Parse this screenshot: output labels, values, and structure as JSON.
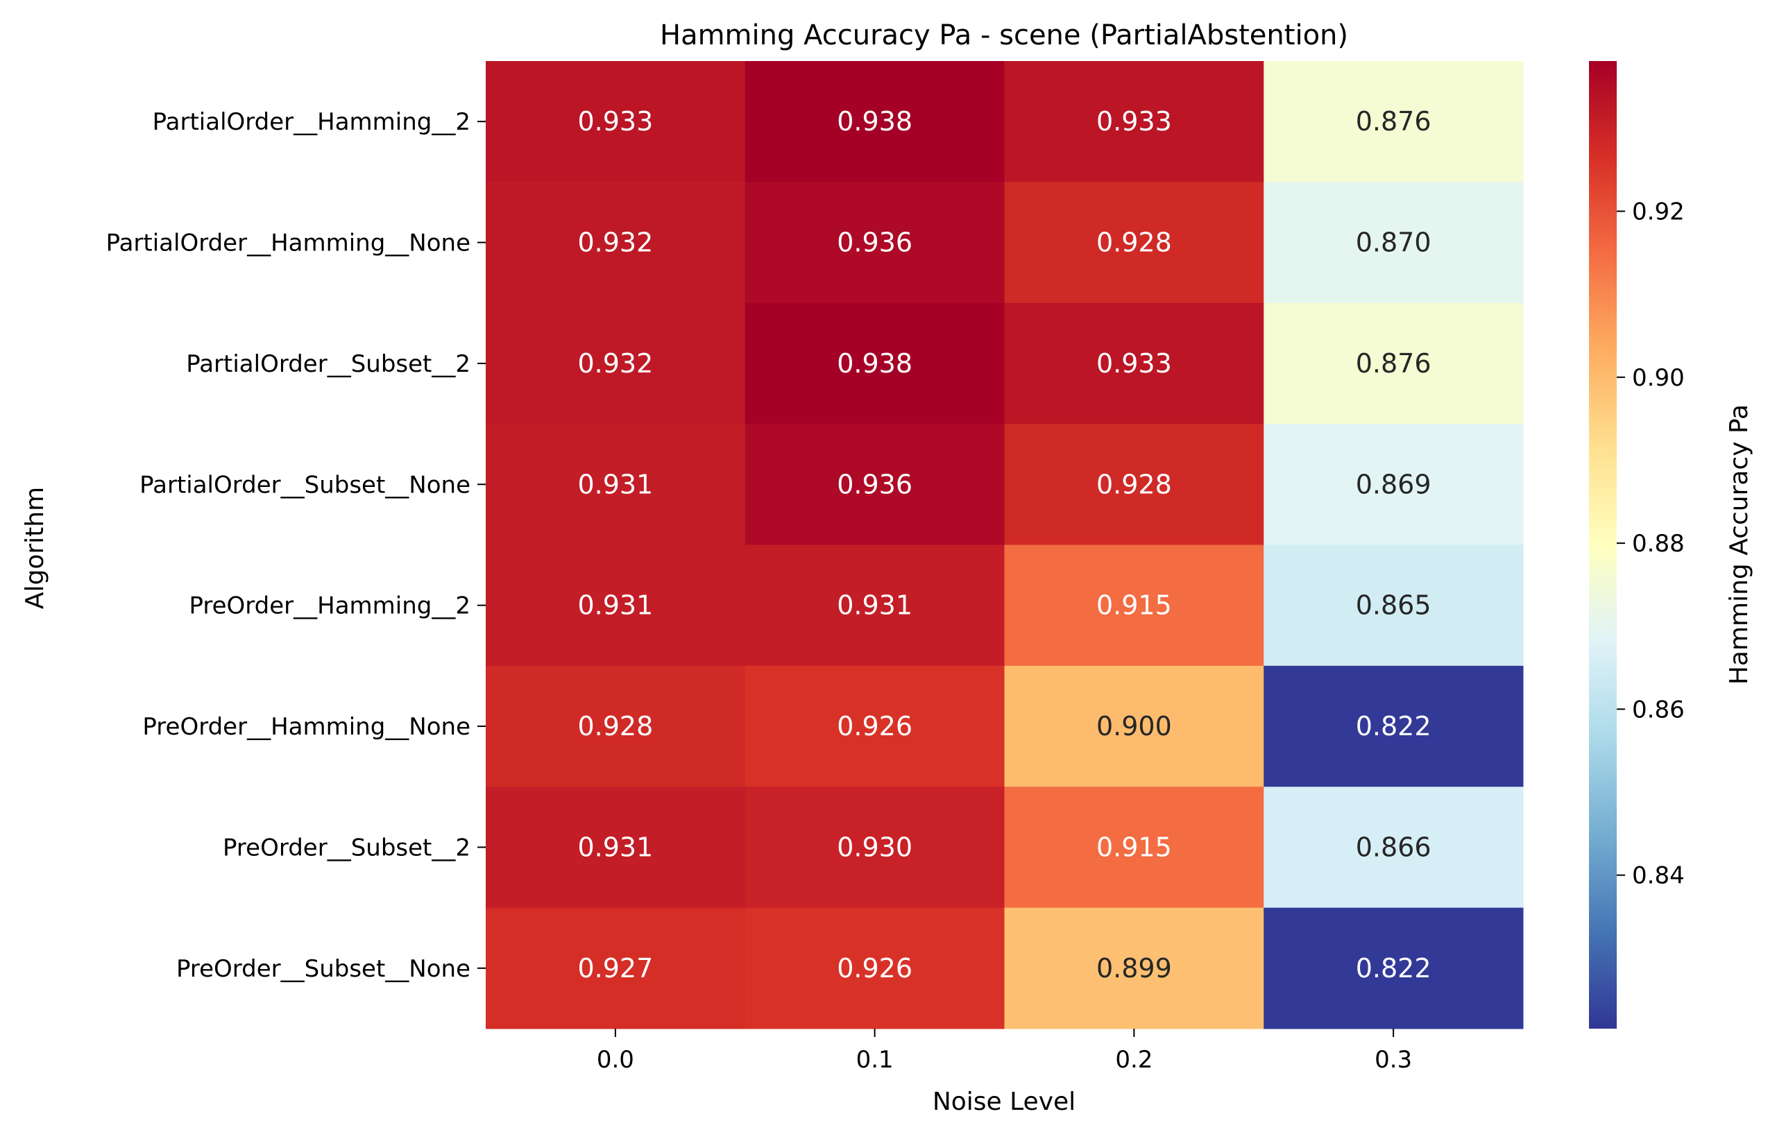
{
  "chart_data": {
    "type": "heatmap",
    "title": "Hamming Accuracy Pa - scene (PartialAbstention)",
    "xlabel": "Noise Level",
    "ylabel": "Algorithm",
    "colorbar_label": "Hamming Accuracy Pa",
    "colormap": "RdYlBu_r",
    "x_categories": [
      "0.0",
      "0.1",
      "0.2",
      "0.3"
    ],
    "y_categories": [
      "PartialOrder__Hamming__2",
      "PartialOrder__Hamming__None",
      "PartialOrder__Subset__2",
      "PartialOrder__Subset__None",
      "PreOrder__Hamming__2",
      "PreOrder__Hamming__None",
      "PreOrder__Subset__2",
      "PreOrder__Subset__None"
    ],
    "values": [
      [
        0.933,
        0.938,
        0.933,
        0.876
      ],
      [
        0.932,
        0.936,
        0.928,
        0.87
      ],
      [
        0.932,
        0.938,
        0.933,
        0.876
      ],
      [
        0.931,
        0.936,
        0.928,
        0.869
      ],
      [
        0.931,
        0.931,
        0.915,
        0.865
      ],
      [
        0.928,
        0.926,
        0.9,
        0.822
      ],
      [
        0.931,
        0.93,
        0.915,
        0.866
      ],
      [
        0.927,
        0.926,
        0.899,
        0.822
      ]
    ],
    "labels": [
      [
        "0.933",
        "0.938",
        "0.933",
        "0.876"
      ],
      [
        "0.932",
        "0.936",
        "0.928",
        "0.870"
      ],
      [
        "0.932",
        "0.938",
        "0.933",
        "0.876"
      ],
      [
        "0.931",
        "0.936",
        "0.928",
        "0.869"
      ],
      [
        "0.931",
        "0.931",
        "0.915",
        "0.865"
      ],
      [
        "0.928",
        "0.926",
        "0.900",
        "0.822"
      ],
      [
        "0.931",
        "0.930",
        "0.915",
        "0.866"
      ],
      [
        "0.927",
        "0.926",
        "0.899",
        "0.822"
      ]
    ],
    "vmin": 0.8215,
    "vmax": 0.9381,
    "colorbar_ticks": [
      "0.84",
      "0.86",
      "0.88",
      "0.90",
      "0.92"
    ]
  }
}
